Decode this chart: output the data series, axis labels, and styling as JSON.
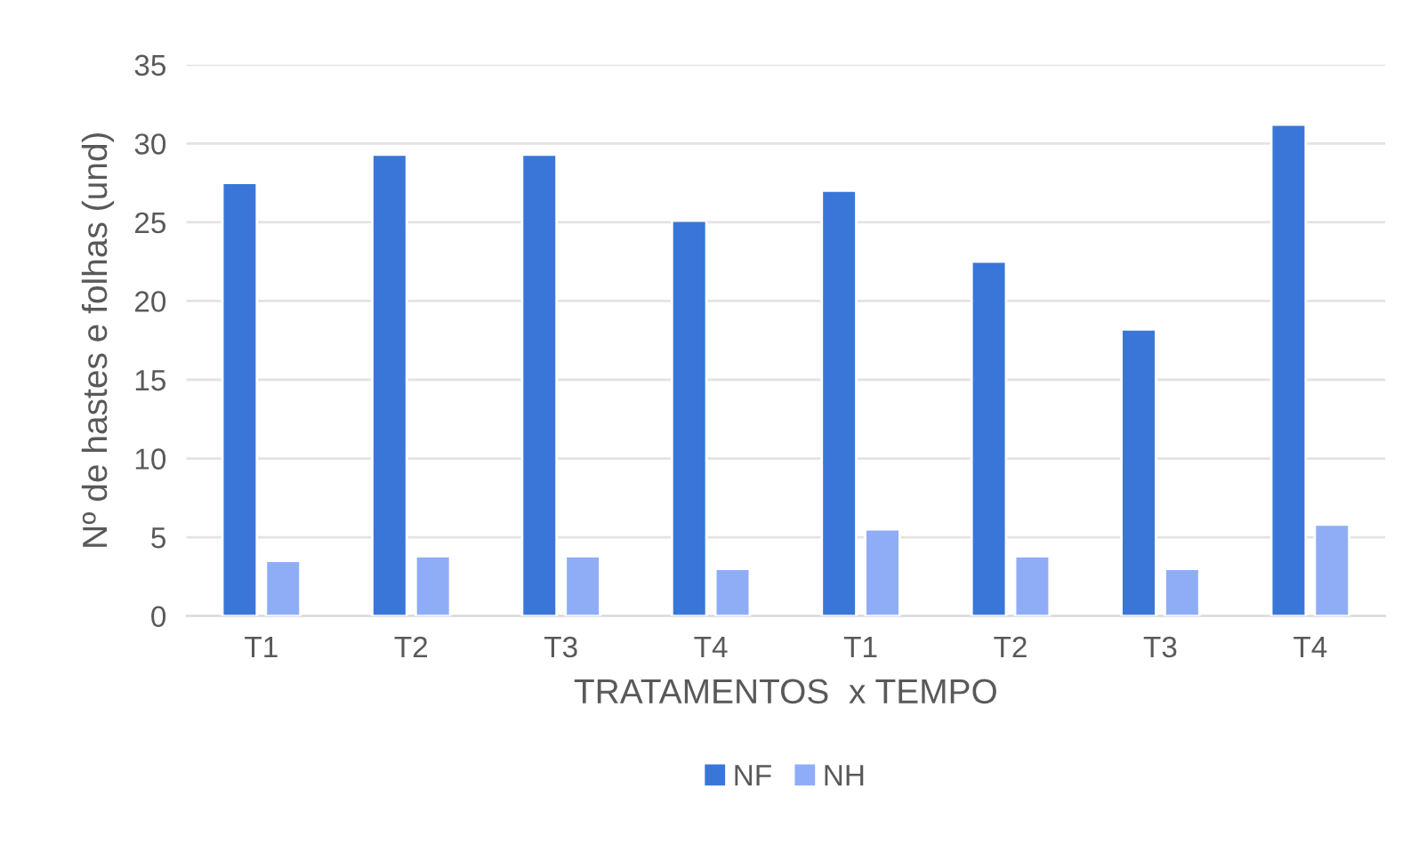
{
  "chart_data": {
    "type": "bar",
    "xlabel": "TRATAMENTOS  x TEMPO",
    "ylabel": "Nº de hastes e folhas (und)",
    "categories": [
      "T1",
      "T2",
      "T3",
      "T4",
      "T1",
      "T2",
      "T3",
      "T4"
    ],
    "series": [
      {
        "name": "NF",
        "color": "#3a76d8",
        "values": [
          27.5,
          29.3,
          29.3,
          25.1,
          27.0,
          22.5,
          18.2,
          31.2
        ]
      },
      {
        "name": "NH",
        "color": "#8fadf7",
        "values": [
          3.5,
          3.8,
          3.8,
          3.0,
          5.5,
          3.8,
          3.0,
          5.8
        ]
      }
    ],
    "ylim": [
      0,
      35
    ],
    "yticks": [
      0,
      5,
      10,
      15,
      20,
      25,
      30,
      35
    ],
    "grid": "y",
    "legend": "bottom"
  }
}
